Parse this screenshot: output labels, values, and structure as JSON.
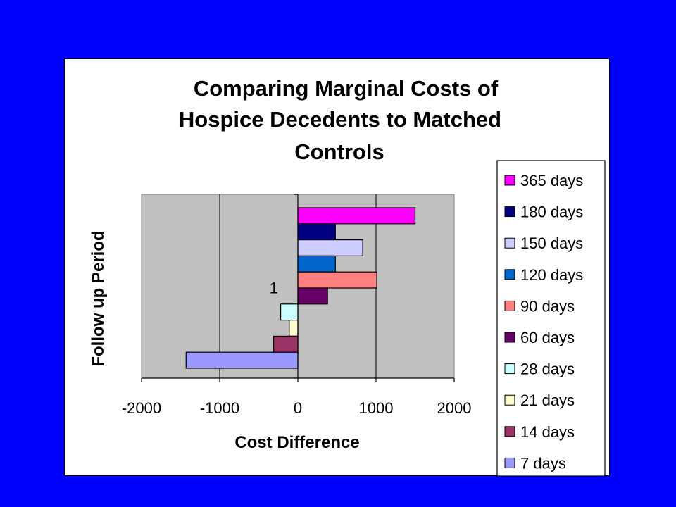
{
  "colors": {
    "background": "#0000ff",
    "panel": "#ffffff",
    "plot_area": "#c0c0c0"
  },
  "chart_data": {
    "type": "bar",
    "orientation": "horizontal",
    "title_lines": [
      "Comparing Marginal Costs of",
      "Hospice Decedents to Matched",
      "Controls"
    ],
    "xlabel": "Cost Difference",
    "ylabel": "Follow up Period",
    "categories": [
      "1"
    ],
    "xlim": [
      -2000,
      2000
    ],
    "xticks": [
      "-2000",
      "-1000",
      "0",
      "1000",
      "2000"
    ],
    "grid": "vertical major gridlines",
    "legend_position": "right",
    "series": [
      {
        "name": "365 days",
        "value": 1500,
        "color": "#ff00ff"
      },
      {
        "name": "180 days",
        "value": 480,
        "color": "#000080"
      },
      {
        "name": "150 days",
        "value": 830,
        "color": "#ccccff"
      },
      {
        "name": "120 days",
        "value": 480,
        "color": "#0066cc"
      },
      {
        "name": "90 days",
        "value": 1010,
        "color": "#ff8080"
      },
      {
        "name": "60 days",
        "value": 380,
        "color": "#660066"
      },
      {
        "name": "28 days",
        "value": -220,
        "color": "#ccffff"
      },
      {
        "name": "21 days",
        "value": -110,
        "color": "#ffffcc"
      },
      {
        "name": "14 days",
        "value": -310,
        "color": "#993366"
      },
      {
        "name": "7 days",
        "value": -1430,
        "color": "#9999ff"
      }
    ]
  }
}
